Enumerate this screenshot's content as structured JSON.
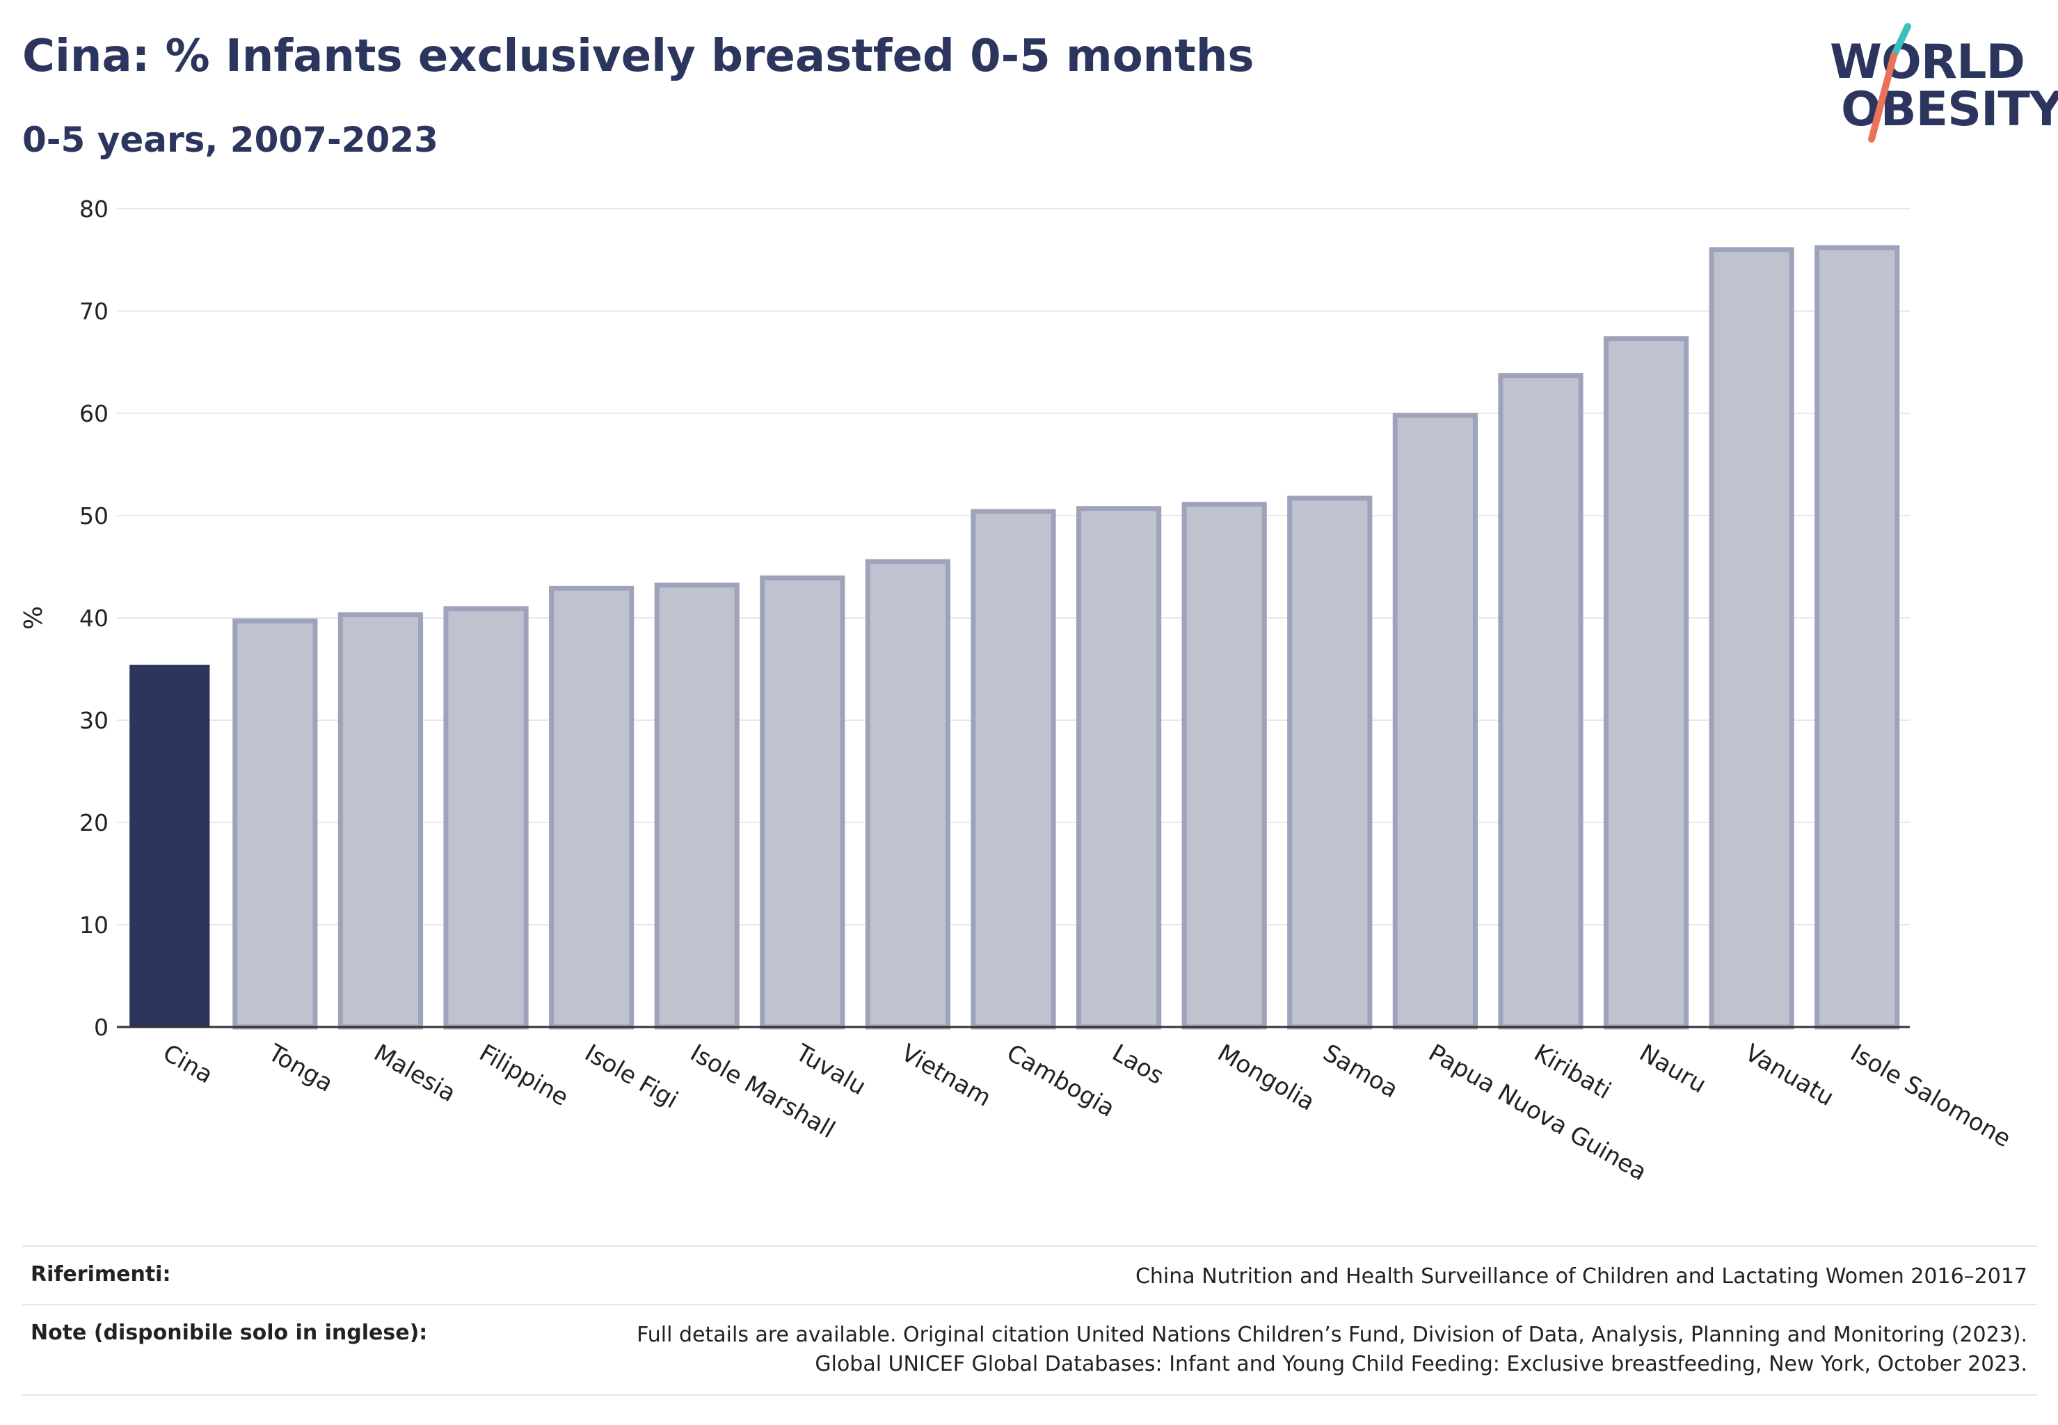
{
  "header": {
    "title": "Cina: % Infants exclusively breastfed 0-5 months",
    "subtitle": "0-5 years, 2007-2023"
  },
  "logo": {
    "line1": "WORLD",
    "line2": "OBESITY"
  },
  "colors": {
    "highlight": "#2c355e",
    "bar_fill": "#bfc2cf",
    "bar_stroke": "#9ea3bb",
    "logo_teal": "#3bbfbf",
    "logo_coral": "#e8735a"
  },
  "chart_data": {
    "type": "bar",
    "title": "Cina: % Infants exclusively breastfed 0-5 months",
    "subtitle": "0-5 years, 2007-2023",
    "xlabel": "",
    "ylabel": "%",
    "ylim": [
      0,
      80
    ],
    "yticks": [
      0,
      10,
      20,
      30,
      40,
      50,
      60,
      70,
      80
    ],
    "grid": true,
    "highlight_category": "Cina",
    "categories": [
      "Cina",
      "Tonga",
      "Malesia",
      "Filippine",
      "Isole Figi",
      "Isole Marshall",
      "Tuvalu",
      "Vietnam",
      "Cambogia",
      "Laos",
      "Mongolia",
      "Samoa",
      "Papua Nuova Guinea",
      "Kiribati",
      "Nauru",
      "Vanuatu",
      "Isole Salomone"
    ],
    "values": [
      35.4,
      39.7,
      40.3,
      40.9,
      42.9,
      43.2,
      43.9,
      45.5,
      50.4,
      50.7,
      51.1,
      51.7,
      59.8,
      63.7,
      67.3,
      76.0,
      76.2
    ]
  },
  "footer": {
    "references_label": "Riferimenti:",
    "references_text": "China Nutrition and Health Surveillance of Children and Lactating Women 2016–2017",
    "notes_label": "Note (disponibile solo in inglese):",
    "notes_line1": "Full details are available. Original citation United Nations Children’s Fund, Division of Data, Analysis, Planning and Monitoring (2023).",
    "notes_line2": "Global UNICEF Global Databases: Infant and Young Child Feeding: Exclusive breastfeeding, New York, October 2023."
  }
}
